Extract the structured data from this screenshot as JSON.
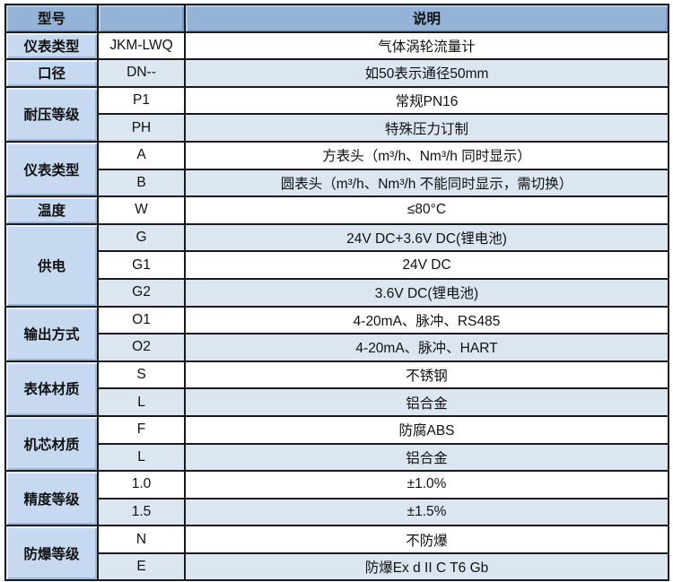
{
  "header": {
    "col1": "型号",
    "col2": "",
    "col3": "说明"
  },
  "groups": [
    {
      "label": "仪表类型",
      "rows": [
        {
          "code": "JKM-LWQ",
          "desc": "气体涡轮流量计"
        }
      ]
    },
    {
      "label": "口径",
      "rows": [
        {
          "code": "DN--",
          "desc": "如50表示通径50mm"
        }
      ]
    },
    {
      "label": "耐压等级",
      "rows": [
        {
          "code": "P1",
          "desc": "常规PN16"
        },
        {
          "code": "PH",
          "desc": "特殊压力订制"
        }
      ]
    },
    {
      "label": "仪表类型",
      "rows": [
        {
          "code": "A",
          "desc": "方表头（m³/h、Nm³/h 同时显示）"
        },
        {
          "code": "B",
          "desc": "圆表头（m³/h、Nm³/h 不能同时显示，需切换）"
        }
      ]
    },
    {
      "label": "温度",
      "rows": [
        {
          "code": "W",
          "desc": "≤80°C"
        }
      ]
    },
    {
      "label": "供电",
      "rows": [
        {
          "code": "G",
          "desc": "24V DC+3.6V DC(锂电池)"
        },
        {
          "code": "G1",
          "desc": "24V DC"
        },
        {
          "code": "G2",
          "desc": "3.6V DC(锂电池)"
        }
      ]
    },
    {
      "label": "输出方式",
      "rows": [
        {
          "code": "O1",
          "desc": "4-20mA、脉冲、RS485"
        },
        {
          "code": "O2",
          "desc": "4-20mA、脉冲、HART"
        }
      ]
    },
    {
      "label": "表体材质",
      "rows": [
        {
          "code": "S",
          "desc": "不锈钢"
        },
        {
          "code": "L",
          "desc": "铝合金"
        }
      ]
    },
    {
      "label": "机芯材质",
      "rows": [
        {
          "code": "F",
          "desc": "防腐ABS"
        },
        {
          "code": "L",
          "desc": "铝合金"
        }
      ]
    },
    {
      "label": "精度等级",
      "rows": [
        {
          "code": "1.0",
          "desc": "±1.0%"
        },
        {
          "code": "1.5",
          "desc": "±1.5%"
        }
      ]
    },
    {
      "label": "防爆等级",
      "rows": [
        {
          "code": "N",
          "desc": "不防爆"
        },
        {
          "code": "E",
          "desc": "防爆Ex d II C T6 Gb"
        }
      ]
    }
  ],
  "colors": {
    "header_bg": "#95b3d7",
    "label_bg": "#c6d9f0",
    "alt_row_bg": "#dce6f1"
  }
}
